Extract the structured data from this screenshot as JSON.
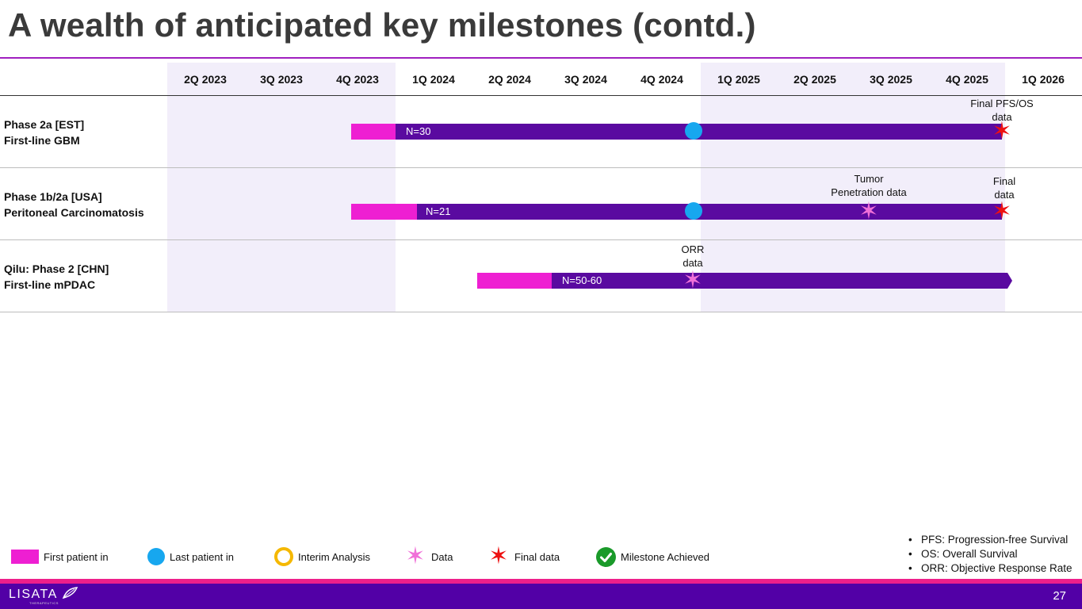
{
  "title": "A wealth of anticipated key milestones (contd.)",
  "quarters": [
    "2Q 2023",
    "3Q 2023",
    "4Q 2023",
    "1Q 2024",
    "2Q 2024",
    "3Q 2024",
    "4Q 2024",
    "1Q 2025",
    "2Q 2025",
    "3Q 2025",
    "4Q 2025",
    "1Q 2026"
  ],
  "rows": [
    {
      "line1": "Phase 2a [EST]",
      "line2": "First-line GBM",
      "n": "N=30"
    },
    {
      "line1": "Phase 1b/2a [USA]",
      "line2": "Peritoneal Carcinomatosis",
      "n": "N=21"
    },
    {
      "line1": "Qilu: Phase 2 [CHN]",
      "line2": "First-line mPDAC",
      "n": "N=50-60"
    }
  ],
  "annotations": {
    "row1_final": [
      "Final PFS/OS",
      "data"
    ],
    "row2_data": [
      "Tumor",
      "Penetration data"
    ],
    "row2_final": [
      "Final",
      "data"
    ],
    "row3_data": [
      "ORR",
      "data"
    ]
  },
  "legend": {
    "first_patient": "First patient in",
    "last_patient": "Last patient in",
    "interim": "Interim Analysis",
    "data": "Data",
    "final": "Final data",
    "achieved": "Milestone Achieved"
  },
  "abbreviations": [
    "PFS: Progression-free Survival",
    "OS: Overall Survival",
    "ORR: Objective Response Rate"
  ],
  "footer": {
    "logo": "LISATA",
    "logo_sub": "THERAPEUTICS",
    "page": "27"
  },
  "colors": {
    "first_patient": "#ee1fd2",
    "main_bar": "#5a0aa0",
    "last_patient": "#17a7ef",
    "data_star": "#f070d8",
    "final_star": "#ee1111",
    "interim": "#f5b800",
    "achieved": "#1a9a2a",
    "footer": "#5200a6",
    "footer_accent": "#ee1f8a"
  },
  "icons": {
    "last_patient": "circle-icon",
    "interim": "ring-icon",
    "data": "six-point-star-icon",
    "final": "six-point-star-icon",
    "achieved": "check-circle-icon"
  }
}
